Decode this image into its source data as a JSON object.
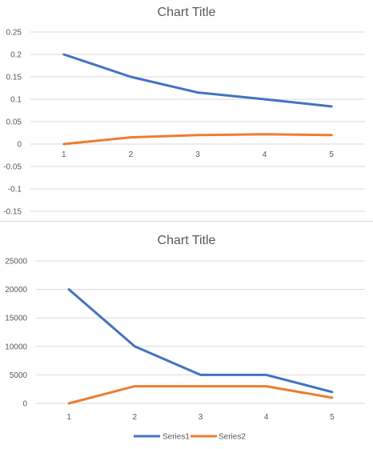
{
  "colors": {
    "series1": "#4472C4",
    "series2": "#ED7D31",
    "gridline": "#d9d9d9",
    "text": "#595959"
  },
  "chart_data": [
    {
      "type": "line",
      "title": "Chart Title",
      "xlabel": "",
      "ylabel": "",
      "x": [
        "1",
        "2",
        "3",
        "4",
        "5"
      ],
      "ylim": [
        -0.15,
        0.25
      ],
      "yticks": [
        "0.25",
        "0.2",
        "0.15",
        "0.1",
        "0.05",
        "0",
        "-0.05",
        "-0.1",
        "-0.15"
      ],
      "ytick_values": [
        0.25,
        0.2,
        0.15,
        0.1,
        0.05,
        0,
        -0.05,
        -0.1,
        -0.15
      ],
      "grid": true,
      "legend": false,
      "series": [
        {
          "values": [
            0.2,
            0.15,
            0.115,
            0.1,
            0.084
          ]
        },
        {
          "values": [
            0,
            0.015,
            0.02,
            0.022,
            0.02
          ]
        }
      ]
    },
    {
      "type": "line",
      "title": "Chart Title",
      "xlabel": "",
      "ylabel": "",
      "x": [
        "1",
        "2",
        "3",
        "4",
        "5"
      ],
      "ylim": [
        0,
        25000
      ],
      "yticks": [
        "25000",
        "20000",
        "15000",
        "10000",
        "5000",
        "0"
      ],
      "ytick_values": [
        25000,
        20000,
        15000,
        10000,
        5000,
        0
      ],
      "grid": true,
      "legend": "bottom",
      "series": [
        {
          "name": "Series1",
          "values": [
            20000,
            10000,
            5000,
            5000,
            2000
          ]
        },
        {
          "name": "Series2",
          "values": [
            0,
            3000,
            3000,
            3000,
            1000
          ]
        }
      ]
    }
  ]
}
